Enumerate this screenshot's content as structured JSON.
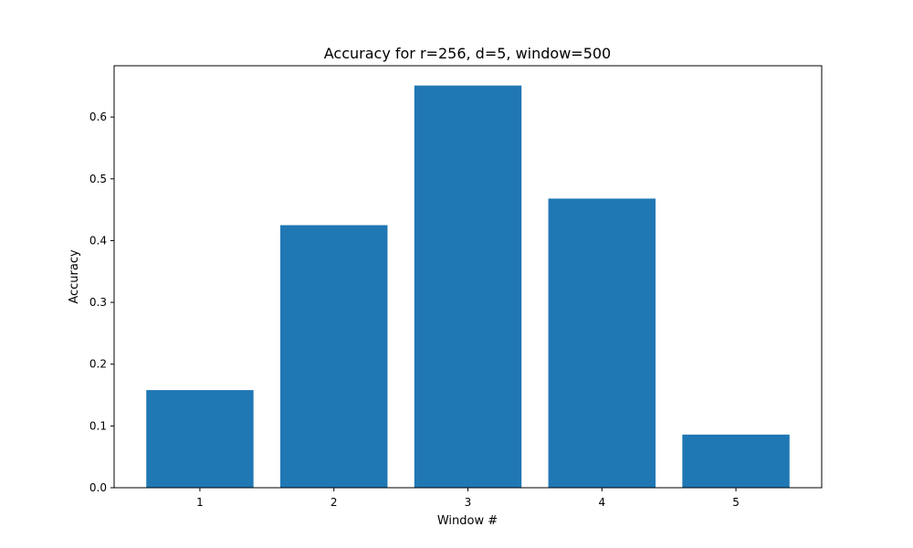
{
  "chart_data": {
    "type": "bar",
    "title": "Accuracy for r=256, d=5, window=500",
    "xlabel": "Window #",
    "ylabel": "Accuracy",
    "categories": [
      "1",
      "2",
      "3",
      "4",
      "5"
    ],
    "values": [
      0.158,
      0.425,
      0.651,
      0.468,
      0.086
    ],
    "ylim": [
      0,
      0.683
    ],
    "yticks": [
      0.0,
      0.1,
      0.2,
      0.3,
      0.4,
      0.5,
      0.6
    ],
    "ytick_labels": [
      "0.0",
      "0.1",
      "0.2",
      "0.3",
      "0.4",
      "0.5",
      "0.6"
    ],
    "grid": false,
    "legend": "none",
    "bar_color": "#1f77b4"
  }
}
